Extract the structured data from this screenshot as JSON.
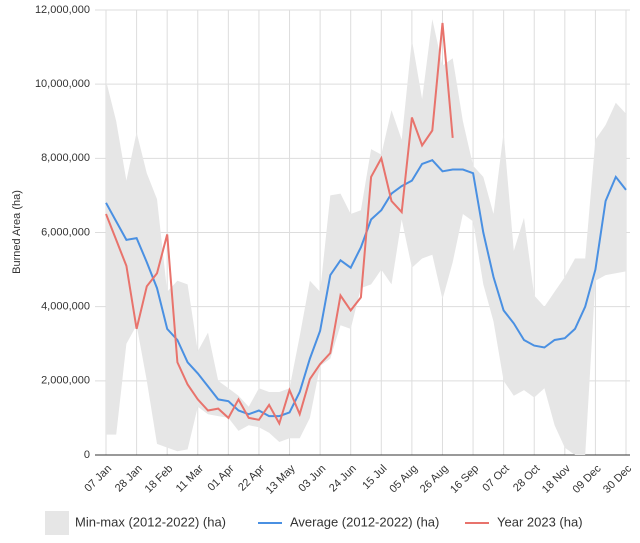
{
  "chart_data": {
    "type": "line",
    "y_label": "Burned Area (ha)",
    "categories": [
      "07 Jan",
      null,
      null,
      "28 Jan",
      null,
      null,
      "18 Feb",
      null,
      null,
      "11 Mar",
      null,
      null,
      "01 Apr",
      null,
      null,
      "22 Apr",
      null,
      null,
      "13 May",
      null,
      null,
      "03 Jun",
      null,
      null,
      "24 Jun",
      null,
      null,
      "15 Jul",
      null,
      null,
      "05 Aug",
      null,
      null,
      "26 Aug",
      null,
      null,
      "16 Sep",
      null,
      null,
      "07 Oct",
      null,
      null,
      "28 Oct",
      null,
      null,
      "18 Nov",
      null,
      null,
      "09 Dec",
      null,
      null,
      "30 Dec"
    ],
    "ylim": [
      0,
      12000000
    ],
    "yticks": [
      0,
      {
        "value": 2000000,
        "label": "2,000,000"
      },
      {
        "value": 4000000,
        "label": "4,000,000"
      },
      {
        "value": 6000000,
        "label": "6,000,000"
      },
      {
        "value": 8000000,
        "label": "8,000,000"
      },
      {
        "value": 10000000,
        "label": "10,000,000"
      },
      {
        "value": 12000000,
        "label": "12,000,000"
      }
    ],
    "grid": true,
    "legend": "bottom",
    "series": [
      {
        "name": "Min-max (2012-2022) (ha)",
        "color": "#e6e6e6",
        "kind": "band",
        "max": [
          10100000,
          9000000,
          7400000,
          8700000,
          7600000,
          6900000,
          4400000,
          4700000,
          4600000,
          2800000,
          3300000,
          2000000,
          1800000,
          1600000,
          1300000,
          1800000,
          1700000,
          1700000,
          1800000,
          3200000,
          4700000,
          4400000,
          7000000,
          7050000,
          6500000,
          6600000,
          8250000,
          8100000,
          9300000,
          8500000,
          11200000,
          9600000,
          11750000,
          10500000,
          10700000,
          9000000,
          7800000,
          7500000,
          6500000,
          8700000,
          5500000,
          6400000,
          4300000,
          4000000,
          4400000,
          4800000,
          5300000,
          5300000,
          8500000,
          8900000,
          9500000,
          9200000
        ],
        "min": [
          550000,
          550000,
          3000000,
          3500000,
          2000000,
          300000,
          200000,
          100000,
          150000,
          1300000,
          1100000,
          1050000,
          1000000,
          650000,
          800000,
          750000,
          600000,
          350000,
          450000,
          450000,
          1000000,
          2400000,
          2600000,
          3500000,
          3400000,
          4500000,
          4600000,
          5000000,
          4600000,
          6350000,
          5050000,
          5300000,
          5400000,
          4200000,
          5200000,
          6500000,
          6300000,
          4600000,
          3600000,
          2000000,
          1600000,
          1750000,
          1550000,
          1800000,
          800000,
          200000,
          0,
          0,
          4700000,
          4850000,
          4900000,
          4950000
        ]
      },
      {
        "name": "Average (2012-2022) (ha)",
        "color": "#4a90e2",
        "values": [
          6800000,
          6300000,
          5800000,
          5850000,
          5200000,
          4500000,
          3400000,
          3100000,
          2500000,
          2200000,
          1850000,
          1500000,
          1450000,
          1200000,
          1100000,
          1200000,
          1050000,
          1050000,
          1150000,
          1700000,
          2600000,
          3350000,
          4850000,
          5250000,
          5050000,
          5600000,
          6350000,
          6600000,
          7050000,
          7250000,
          7400000,
          7850000,
          7950000,
          7650000,
          7700000,
          7700000,
          7600000,
          6000000,
          4800000,
          3900000,
          3550000,
          3100000,
          2950000,
          2900000,
          3100000,
          3150000,
          3400000,
          4000000,
          5000000,
          6850000,
          7500000,
          7150000
        ]
      },
      {
        "name": "Year 2023 (ha)",
        "color": "#e8736c",
        "values": [
          6500000,
          5800000,
          5100000,
          3400000,
          4550000,
          4900000,
          5950000,
          2500000,
          1900000,
          1500000,
          1200000,
          1250000,
          1000000,
          1500000,
          1000000,
          950000,
          1350000,
          850000,
          1750000,
          1100000,
          2050000,
          2450000,
          2750000,
          4300000,
          3900000,
          4250000,
          7500000,
          8000000,
          6850000,
          6550000,
          9100000,
          8350000,
          8750000,
          11650000,
          8550000,
          null,
          null,
          null,
          null,
          null,
          null,
          null,
          null,
          null,
          null,
          null,
          null,
          null,
          null,
          null,
          null,
          null
        ]
      }
    ]
  }
}
